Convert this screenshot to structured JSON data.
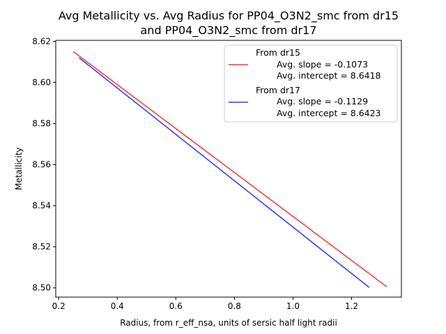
{
  "chart_data": {
    "type": "line",
    "title_lines": [
      "Avg Metallicity vs. Avg Radius for PP04_O3N2_smc from dr15",
      "and PP04_O3N2_smc from dr17"
    ],
    "xlabel": "Radius, from r_eff_nsa, units of sersic half light radii",
    "ylabel": "Metallicity",
    "xlim": [
      0.19,
      1.37
    ],
    "ylim": [
      8.4955,
      8.6205
    ],
    "xticks": [
      0.2,
      0.4,
      0.6,
      0.8,
      1.0,
      1.2
    ],
    "xtick_labels": [
      "0.2",
      "0.4",
      "0.6",
      "0.8",
      "1.0",
      "1.2"
    ],
    "yticks": [
      8.5,
      8.52,
      8.54,
      8.56,
      8.58,
      8.6,
      8.62
    ],
    "ytick_labels": [
      "8.50",
      "8.52",
      "8.54",
      "8.56",
      "8.58",
      "8.60",
      "8.62"
    ],
    "grid": false,
    "legend_position": "top-right",
    "series": [
      {
        "name": "From dr15",
        "legend_lines": [
          "From dr15",
          "Avg. slope = -0.1073",
          "Avg. intercept = 8.6418"
        ],
        "color": "#ff3333",
        "x": [
          0.25,
          1.32
        ],
        "y": [
          8.615,
          8.5005
        ]
      },
      {
        "name": "From dr17",
        "legend_lines": [
          "From dr17",
          "Avg. slope = -0.1129",
          "Avg. intercept = 8.6423"
        ],
        "color": "#3333ff",
        "x": [
          0.27,
          1.26
        ],
        "y": [
          8.612,
          8.5002
        ]
      }
    ]
  }
}
